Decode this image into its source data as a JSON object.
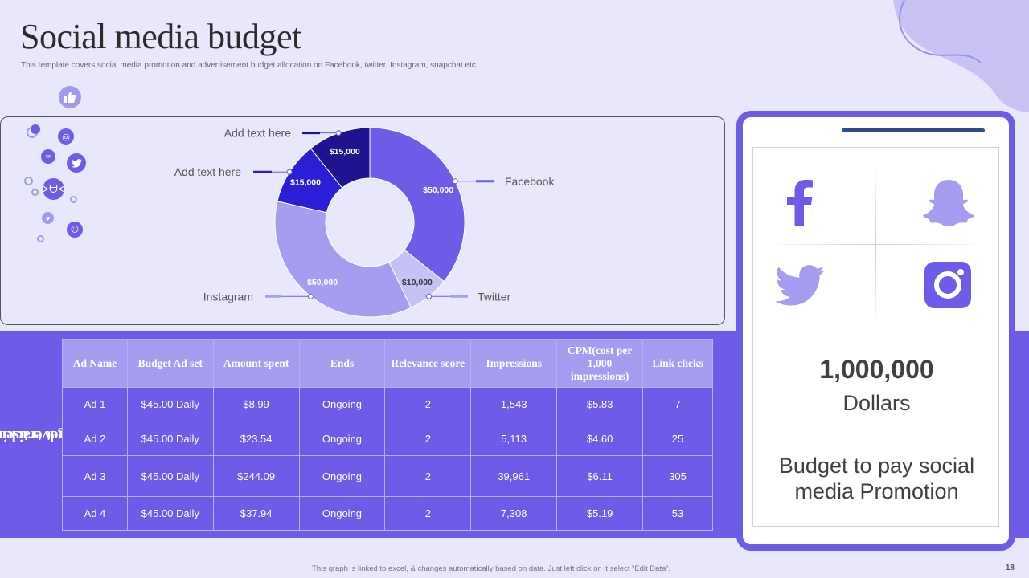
{
  "header": {
    "title": "Social media budget",
    "subtitle": "This template covers social media promotion and advertisement budget allocation on Facebook, twitter, Instagram, snapchat etc."
  },
  "colors": {
    "background": "#e9e7fb",
    "accent": "#6c5ce7",
    "light_accent": "#a69df0",
    "dark_navy": "#2f4b8f"
  },
  "icons": {
    "like": "thumbs-up-icon",
    "phone_icons": [
      "facebook-icon",
      "snapchat-icon",
      "twitter-icon",
      "instagram-icon"
    ]
  },
  "chart_data": {
    "type": "pie",
    "title": "",
    "slices": [
      {
        "label": "Facebook",
        "value": 50000,
        "value_label": "$50,000",
        "color": "#6c5ce7"
      },
      {
        "label": "Twitter",
        "value": 10000,
        "value_label": "$10,000",
        "color": "#c7c2f5"
      },
      {
        "label": "Instagram",
        "value": 50000,
        "value_label": "$50,000",
        "color": "#a69df0"
      },
      {
        "label": "Add text here",
        "value": 15000,
        "value_label": "$15,000",
        "color": "#2a1fd6"
      },
      {
        "label": "Add text here",
        "value": 15000,
        "value_label": "$15,000",
        "color": "#1f138f"
      }
    ]
  },
  "table": {
    "side_label_line1": "Advertisement",
    "side_label_line2": "budget tracking",
    "headers": [
      "Ad Name",
      "Budget Ad set",
      "Amount spent",
      "Ends",
      "Relevance score",
      "Impressions",
      "CPM(cost per 1,000 impressions)",
      "Link clicks"
    ],
    "rows": [
      [
        "Ad 1",
        "$45.00 Daily",
        "$8.99",
        "Ongoing",
        "2",
        "1,543",
        "$5.83",
        "7"
      ],
      [
        "Ad 2",
        "$45.00 Daily",
        "$23.54",
        "Ongoing",
        "2",
        "5,113",
        "$4.60",
        "25"
      ],
      [
        "Ad 3",
        "$45.00 Daily",
        "$244.09",
        "Ongoing",
        "2",
        "39,961",
        "$6.11",
        "305"
      ],
      [
        "Ad 4",
        "$45.00 Daily",
        "$37.94",
        "Ongoing",
        "2",
        "7,308",
        "$5.19",
        "53"
      ]
    ]
  },
  "phone": {
    "amount": "1,000,000",
    "unit": "Dollars",
    "description": "Budget to pay social media Promotion"
  },
  "footer": {
    "note": "This graph is linked to excel, & changes automatically based on data. Just left click on it select “Edit Data”.",
    "page_number": "18"
  }
}
